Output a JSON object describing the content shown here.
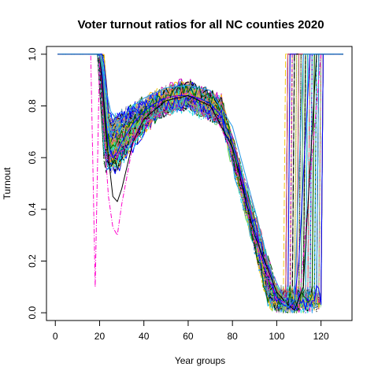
{
  "chart_data": {
    "type": "line",
    "title": "Voter turnout ratios for all NC counties 2020",
    "xlabel": "Year groups",
    "ylabel": "Turnout",
    "xlim": [
      -4,
      134
    ],
    "ylim": [
      -0.03,
      1.03
    ],
    "xticks": [
      0,
      20,
      40,
      60,
      80,
      100,
      120
    ],
    "yticks": [
      0.0,
      0.2,
      0.4,
      0.6,
      0.8,
      1.0
    ],
    "xtick_labels": [
      "0",
      "20",
      "40",
      "60",
      "80",
      "100",
      "120"
    ],
    "ytick_labels": [
      "0.0",
      "0.2",
      "0.4",
      "0.6",
      "0.8",
      "1.0"
    ],
    "grid": false,
    "legend": "none",
    "series_count": 100,
    "x_range": [
      1,
      130
    ],
    "palette": [
      "#000000",
      "#DF536B",
      "#61D04F",
      "#2297E6",
      "#28E2E5",
      "#CD0BBC",
      "#F5C710",
      "#9E9E9E",
      "#0000FF",
      "#006400"
    ],
    "representative_series": [
      {
        "x": [
          1,
          17,
          20,
          21,
          22,
          24,
          26,
          28,
          30,
          35,
          40,
          45,
          50,
          55,
          60,
          65,
          70,
          75,
          80,
          85,
          90,
          95,
          100,
          103,
          106,
          108,
          110,
          115,
          122,
          130
        ],
        "y": [
          1.0,
          1.0,
          1.0,
          0.95,
          0.82,
          0.65,
          0.6,
          0.62,
          0.66,
          0.73,
          0.78,
          0.81,
          0.83,
          0.84,
          0.84,
          0.83,
          0.81,
          0.76,
          0.66,
          0.5,
          0.32,
          0.16,
          0.06,
          0.03,
          0.02,
          0.05,
          0.2,
          1.0,
          1.0,
          1.0
        ]
      },
      {
        "x": [
          1,
          16,
          18,
          20,
          22,
          24,
          26,
          28,
          30,
          35,
          40,
          50,
          60,
          70,
          80,
          90,
          100,
          110,
          120,
          130
        ],
        "y": [
          1.0,
          1.0,
          0.1,
          1.0,
          0.7,
          0.45,
          0.33,
          0.3,
          0.42,
          0.65,
          0.76,
          0.83,
          0.85,
          0.8,
          0.62,
          0.28,
          0.05,
          0.02,
          1.0,
          1.0
        ]
      },
      {
        "x": [
          1,
          20,
          22,
          24,
          26,
          28,
          30,
          35,
          40,
          50,
          60,
          70,
          80,
          90,
          100,
          104,
          108,
          112,
          118,
          130
        ],
        "y": [
          1.0,
          1.0,
          0.8,
          0.6,
          0.45,
          0.43,
          0.48,
          0.66,
          0.75,
          0.82,
          0.84,
          0.8,
          0.64,
          0.3,
          0.08,
          0.04,
          0.01,
          0.1,
          1.0,
          1.0
        ]
      },
      {
        "x": [
          1,
          20,
          22,
          25,
          28,
          31,
          35,
          40,
          50,
          60,
          70,
          80,
          90,
          97,
          102,
          105,
          108,
          112,
          130
        ],
        "y": [
          1.0,
          1.0,
          0.9,
          0.78,
          0.74,
          0.76,
          0.8,
          0.83,
          0.87,
          0.88,
          0.86,
          0.72,
          0.4,
          0.17,
          0.08,
          0.02,
          0.05,
          1.0,
          1.0
        ]
      }
    ]
  }
}
